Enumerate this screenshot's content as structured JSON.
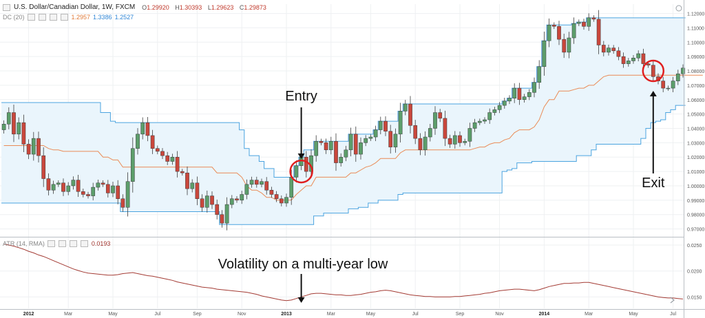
{
  "header": {
    "symbol_title": "U.S. Dollar/Canadian Dollar, 1W, FXCM",
    "ohlc": [
      {
        "key": "O",
        "value": "1.29920"
      },
      {
        "key": "H",
        "value": "1.30393"
      },
      {
        "key": "L",
        "value": "1.29623"
      },
      {
        "key": "C",
        "value": "1.29873"
      }
    ],
    "dc_label": "DC (20)",
    "dc_values": [
      "1.2957",
      "1.3386",
      "1.2527"
    ],
    "atr_label": "ATR (14, RMA)",
    "atr_value": "0.0193"
  },
  "colors": {
    "up_candle": "#5c9e6b",
    "down_candle": "#c9473c",
    "channel_band": "#4aa3df",
    "channel_fill": "#eaf5fc",
    "channel_mid": "#ea8a55",
    "atr_line": "#a33a33",
    "annotation_circle": "#e01f1f"
  },
  "annotations": {
    "entry": "Entry",
    "exit": "Exit",
    "volatility": "Volatility on a multi-year low"
  },
  "chart_data": [
    {
      "type": "candlestick",
      "title": "U.S. Dollar/Canadian Dollar, 1W, FXCM",
      "ylim": [
        0.965,
        1.1265
      ],
      "y_ticks": [
        "1.12000",
        "1.11000",
        "1.10000",
        "1.09000",
        "1.08000",
        "1.07000",
        "1.06000",
        "1.05000",
        "1.04000",
        "1.03000",
        "1.02000",
        "1.01000",
        "1.00000",
        "0.99000",
        "0.98000",
        "0.97000"
      ],
      "x_ticks": [
        {
          "label": "2012",
          "week": 5
        },
        {
          "label": "Mar",
          "week": 13
        },
        {
          "label": "May",
          "week": 22
        },
        {
          "label": "Jul",
          "week": 31
        },
        {
          "label": "Sep",
          "week": 39
        },
        {
          "label": "Nov",
          "week": 48
        },
        {
          "label": "2013",
          "week": 57
        },
        {
          "label": "Mar",
          "week": 66
        },
        {
          "label": "May",
          "week": 74
        },
        {
          "label": "Jul",
          "week": 83
        },
        {
          "label": "Sep",
          "week": 92
        },
        {
          "label": "Nov",
          "week": 100
        },
        {
          "label": "2014",
          "week": 109
        },
        {
          "label": "Mar",
          "week": 118
        },
        {
          "label": "May",
          "week": 127
        },
        {
          "label": "Jul",
          "week": 135
        }
      ],
      "closes": [
        1.043,
        1.051,
        1.036,
        1.044,
        1.029,
        1.022,
        1.033,
        1.021,
        1.005,
        0.997,
        1.001,
        1.002,
        0.996,
        1.0,
        1.004,
        0.996,
        0.994,
        0.993,
        0.999,
        1.002,
        1.001,
        0.995,
        1.0,
        0.991,
        0.985,
        1.003,
        1.026,
        1.036,
        1.044,
        1.035,
        1.026,
        1.024,
        1.021,
        1.017,
        1.02,
        1.01,
        1.009,
        0.998,
        1.002,
        0.991,
        0.985,
        0.993,
        0.987,
        0.98,
        0.974,
        0.987,
        0.991,
        0.99,
        0.994,
        1.001,
        1.004,
        1.001,
        1.003,
        0.997,
        0.994,
        0.991,
        0.988,
        0.992,
        1.006,
        1.014,
        1.02,
        1.01,
        1.021,
        1.031,
        1.03,
        1.025,
        1.031,
        1.016,
        1.02,
        1.025,
        1.036,
        1.022,
        1.03,
        1.033,
        1.034,
        1.039,
        1.045,
        1.038,
        1.027,
        1.036,
        1.052,
        1.057,
        1.042,
        1.033,
        1.025,
        1.034,
        1.04,
        1.051,
        1.047,
        1.033,
        1.029,
        1.035,
        1.03,
        1.031,
        1.04,
        1.044,
        1.045,
        1.046,
        1.051,
        1.053,
        1.056,
        1.059,
        1.061,
        1.068,
        1.06,
        1.062,
        1.065,
        1.072,
        1.083,
        1.101,
        1.112,
        1.111,
        1.102,
        1.093,
        1.103,
        1.113,
        1.114,
        1.111,
        1.117,
        1.116,
        1.098,
        1.093,
        1.096,
        1.094,
        1.09,
        1.085,
        1.087,
        1.089,
        1.092,
        1.085,
        1.084,
        1.076,
        1.073,
        1.068,
        1.068,
        1.073,
        1.078,
        1.082
      ],
      "donchian_upper": [
        1.058,
        1.058,
        1.058,
        1.058,
        1.058,
        1.058,
        1.058,
        1.058,
        1.058,
        1.058,
        1.058,
        1.058,
        1.058,
        1.058,
        1.058,
        1.058,
        1.058,
        1.058,
        1.058,
        1.058,
        1.051,
        1.051,
        1.045,
        1.044,
        1.044,
        1.044,
        1.044,
        1.044,
        1.044,
        1.044,
        1.044,
        1.044,
        1.044,
        1.044,
        1.044,
        1.044,
        1.044,
        1.044,
        1.044,
        1.044,
        1.044,
        1.044,
        1.044,
        1.044,
        1.044,
        1.044,
        1.044,
        1.044,
        1.039,
        1.026,
        1.021,
        1.021,
        1.017,
        1.012,
        1.012,
        1.006,
        1.006,
        1.006,
        1.006,
        1.014,
        1.02,
        1.025,
        1.025,
        1.031,
        1.031,
        1.031,
        1.031,
        1.031,
        1.031,
        1.031,
        1.036,
        1.036,
        1.036,
        1.036,
        1.036,
        1.039,
        1.045,
        1.045,
        1.045,
        1.045,
        1.052,
        1.057,
        1.057,
        1.057,
        1.057,
        1.057,
        1.057,
        1.057,
        1.057,
        1.057,
        1.057,
        1.057,
        1.057,
        1.057,
        1.057,
        1.057,
        1.057,
        1.057,
        1.057,
        1.057,
        1.057,
        1.059,
        1.061,
        1.068,
        1.068,
        1.068,
        1.068,
        1.072,
        1.083,
        1.101,
        1.112,
        1.112,
        1.112,
        1.112,
        1.112,
        1.113,
        1.114,
        1.114,
        1.117,
        1.117,
        1.117,
        1.117,
        1.117,
        1.117,
        1.117,
        1.117,
        1.117,
        1.117,
        1.117,
        1.117,
        1.117,
        1.117,
        1.117,
        1.117,
        1.117,
        1.117,
        1.117,
        1.117
      ],
      "donchian_mid": [
        1.028,
        1.028,
        1.028,
        1.028,
        1.028,
        1.028,
        1.028,
        1.028,
        1.028,
        1.026,
        1.025,
        1.025,
        1.024,
        1.024,
        1.024,
        1.024,
        1.024,
        1.024,
        1.024,
        1.024,
        1.02,
        1.02,
        1.018,
        1.018,
        1.013,
        1.013,
        1.013,
        1.013,
        1.013,
        1.013,
        1.013,
        1.013,
        1.013,
        1.013,
        1.013,
        1.013,
        1.013,
        1.013,
        1.013,
        1.013,
        1.013,
        1.013,
        1.013,
        1.009,
        1.009,
        1.009,
        1.009,
        1.009,
        1.006,
        1.0,
        0.997,
        0.997,
        0.995,
        0.992,
        0.992,
        0.99,
        0.99,
        0.99,
        0.99,
        0.994,
        0.997,
        1.0,
        1.0,
        1.006,
        1.006,
        1.006,
        1.006,
        1.006,
        1.006,
        1.006,
        1.009,
        1.009,
        1.011,
        1.013,
        1.014,
        1.016,
        1.019,
        1.019,
        1.019,
        1.019,
        1.023,
        1.025,
        1.025,
        1.025,
        1.025,
        1.025,
        1.025,
        1.025,
        1.025,
        1.025,
        1.025,
        1.025,
        1.025,
        1.025,
        1.025,
        1.026,
        1.027,
        1.027,
        1.029,
        1.03,
        1.03,
        1.032,
        1.033,
        1.037,
        1.039,
        1.039,
        1.039,
        1.041,
        1.046,
        1.055,
        1.06,
        1.06,
        1.066,
        1.066,
        1.066,
        1.067,
        1.068,
        1.068,
        1.07,
        1.07,
        1.073,
        1.076,
        1.077,
        1.077,
        1.077,
        1.077,
        1.077,
        1.077,
        1.077,
        1.077,
        1.077,
        1.077,
        1.077,
        1.077,
        1.077,
        1.077,
        1.077,
        1.077,
        1.077,
        1.077,
        1.077,
        1.077
      ],
      "donchian_lower": [
        0.988,
        0.988,
        0.988,
        0.988,
        0.988,
        0.988,
        0.988,
        0.988,
        0.988,
        0.988,
        0.988,
        0.988,
        0.988,
        0.988,
        0.988,
        0.988,
        0.988,
        0.988,
        0.988,
        0.988,
        0.988,
        0.988,
        0.988,
        0.988,
        0.982,
        0.982,
        0.982,
        0.982,
        0.982,
        0.982,
        0.982,
        0.982,
        0.982,
        0.982,
        0.982,
        0.982,
        0.982,
        0.982,
        0.982,
        0.982,
        0.982,
        0.982,
        0.982,
        0.982,
        0.973,
        0.973,
        0.973,
        0.973,
        0.973,
        0.973,
        0.973,
        0.973,
        0.973,
        0.973,
        0.973,
        0.973,
        0.973,
        0.973,
        0.973,
        0.973,
        0.973,
        0.973,
        0.973,
        0.979,
        0.979,
        0.981,
        0.981,
        0.981,
        0.981,
        0.981,
        0.984,
        0.984,
        0.985,
        0.985,
        0.988,
        0.988,
        0.99,
        0.99,
        0.99,
        0.99,
        0.994,
        0.995,
        0.995,
        0.995,
        0.995,
        0.995,
        0.995,
        0.995,
        0.995,
        0.995,
        0.995,
        0.995,
        0.995,
        0.995,
        0.995,
        0.995,
        0.995,
        0.995,
        0.995,
        0.995,
        0.995,
        1.01,
        1.011,
        1.012,
        1.016,
        1.016,
        1.016,
        1.017,
        1.017,
        1.017,
        1.017,
        1.017,
        1.017,
        1.017,
        1.017,
        1.017,
        1.021,
        1.021,
        1.021,
        1.025,
        1.029,
        1.029,
        1.029,
        1.029,
        1.029,
        1.029,
        1.029,
        1.029,
        1.029,
        1.033,
        1.04,
        1.044,
        1.045,
        1.046,
        1.051,
        1.053,
        1.056,
        1.056
      ]
    },
    {
      "type": "line",
      "series": [
        {
          "name": "ATR (14, RMA)",
          "values": [
            0.0252,
            0.025,
            0.0248,
            0.0245,
            0.0242,
            0.0238,
            0.0235,
            0.0231,
            0.0228,
            0.0224,
            0.022,
            0.0216,
            0.0212,
            0.0208,
            0.0204,
            0.0201,
            0.0198,
            0.0196,
            0.0195,
            0.0194,
            0.0193,
            0.0192,
            0.0192,
            0.0193,
            0.0195,
            0.0196,
            0.0197,
            0.0195,
            0.0193,
            0.0191,
            0.019,
            0.0188,
            0.0186,
            0.0184,
            0.0182,
            0.0179,
            0.0177,
            0.0175,
            0.0173,
            0.0171,
            0.0169,
            0.0168,
            0.0167,
            0.0165,
            0.0164,
            0.0163,
            0.0162,
            0.0161,
            0.016,
            0.0159,
            0.0157,
            0.0155,
            0.0152,
            0.015,
            0.0148,
            0.0146,
            0.0144,
            0.0143,
            0.0144,
            0.0147,
            0.015,
            0.0153,
            0.0156,
            0.0157,
            0.0157,
            0.0156,
            0.0155,
            0.0154,
            0.0154,
            0.0153,
            0.0153,
            0.0154,
            0.0155,
            0.0157,
            0.0159,
            0.016,
            0.0162,
            0.0163,
            0.0162,
            0.016,
            0.0158,
            0.0156,
            0.0154,
            0.0153,
            0.0152,
            0.0151,
            0.0151,
            0.015,
            0.015,
            0.015,
            0.015,
            0.0151,
            0.0151,
            0.0152,
            0.0153,
            0.0154,
            0.0155,
            0.0157,
            0.0158,
            0.016,
            0.0162,
            0.0163,
            0.0164,
            0.0165,
            0.0165,
            0.0164,
            0.0163,
            0.0162,
            0.0164,
            0.0167,
            0.017,
            0.0172,
            0.0174,
            0.0176,
            0.0176,
            0.0177,
            0.0177,
            0.0178,
            0.0178,
            0.0176,
            0.0174,
            0.0172,
            0.017,
            0.0168,
            0.0166,
            0.0164,
            0.0162,
            0.016,
            0.0158,
            0.0156,
            0.0154,
            0.0152,
            0.015,
            0.0149,
            0.0148,
            0.0148,
            0.0147,
            0.0146
          ]
        }
      ],
      "ylim": [
        0.0128,
        0.0262
      ],
      "y_ticks": [
        "0.0250",
        "0.0200",
        "0.0150"
      ]
    }
  ]
}
